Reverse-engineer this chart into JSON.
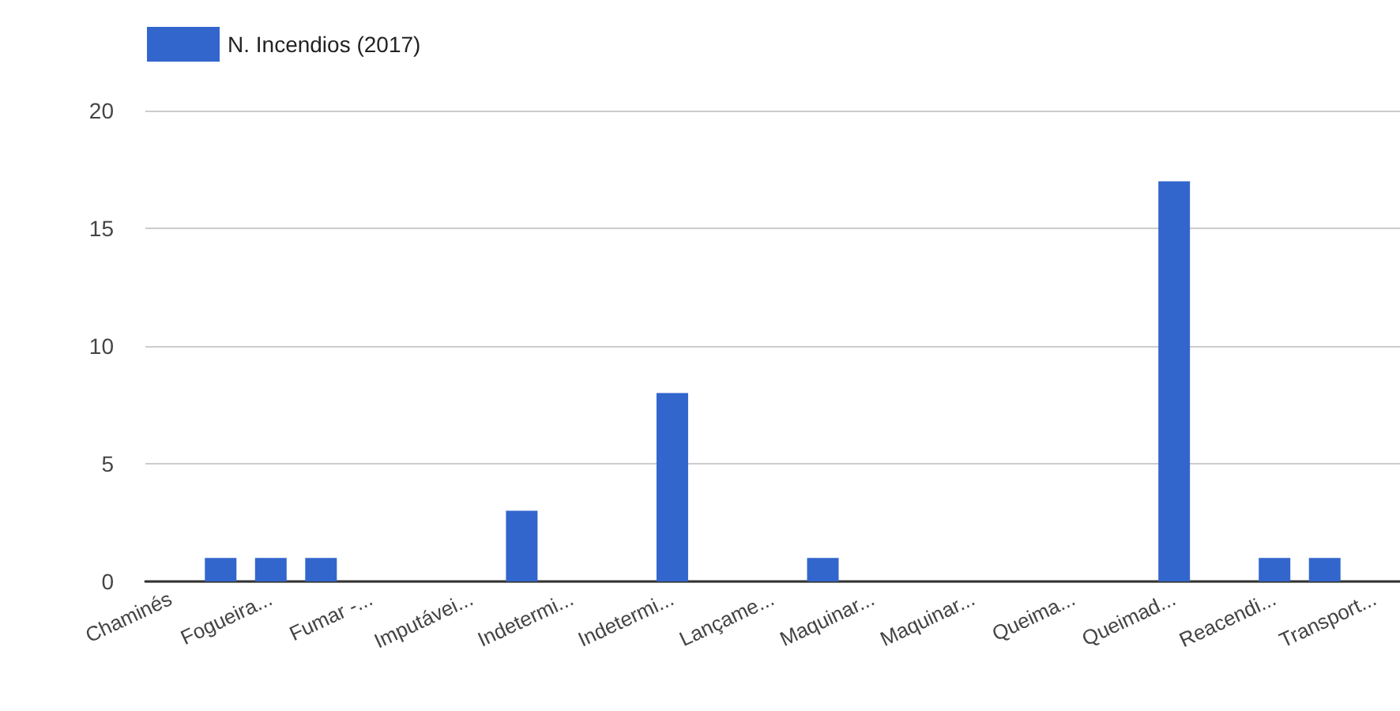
{
  "chart_data": {
    "type": "bar",
    "categories": [
      "Chaminés",
      null,
      "Fogueira...",
      null,
      "Fumar -...",
      null,
      "Imputávei...",
      null,
      "Indetermi...",
      null,
      "Indetermi...",
      null,
      "Lançame...",
      null,
      "Maquinar...",
      null,
      "Maquinar...",
      null,
      "Queima...",
      null,
      "Queimad...",
      null,
      "Reacendi...",
      null,
      "Transport..."
    ],
    "series": [
      {
        "name": "N. Incendios (2017)",
        "color": "#3366cc",
        "values": [
          0,
          1,
          1,
          1,
          0,
          0,
          0,
          3,
          0,
          0,
          8,
          0,
          0,
          1,
          0,
          0,
          0,
          0,
          0,
          0,
          17,
          0,
          1,
          1,
          0
        ]
      }
    ],
    "ylim": [
      0,
      20
    ],
    "yticks": [
      0,
      5,
      10,
      15,
      20
    ],
    "grid": true,
    "legend": "top left"
  }
}
